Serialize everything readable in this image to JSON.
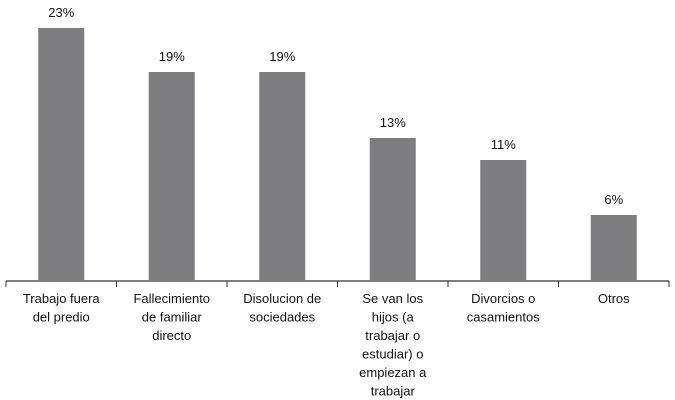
{
  "chart_data": {
    "type": "bar",
    "title": "",
    "xlabel": "",
    "ylabel": "",
    "categories": [
      [
        "Trabajo fuera",
        "del predio"
      ],
      [
        "Fallecimiento",
        "de familiar",
        "directo"
      ],
      [
        "Disolucion de",
        "sociedades"
      ],
      [
        "Se van los",
        "hijos  (a",
        "trabajar o",
        "estudiar) o",
        "empiezan a",
        "trabajar"
      ],
      [
        "Divorcios o",
        "casamientos"
      ],
      [
        "Otros"
      ]
    ],
    "values": [
      23,
      19,
      19,
      13,
      11,
      6
    ],
    "data_labels": [
      "23%",
      "19%",
      "19%",
      "13%",
      "11%",
      "6%"
    ],
    "ylim": [
      0,
      23
    ],
    "grid": false,
    "legend": "none",
    "colors": {
      "bar": "#7d7d80",
      "axis": "#333333"
    }
  }
}
